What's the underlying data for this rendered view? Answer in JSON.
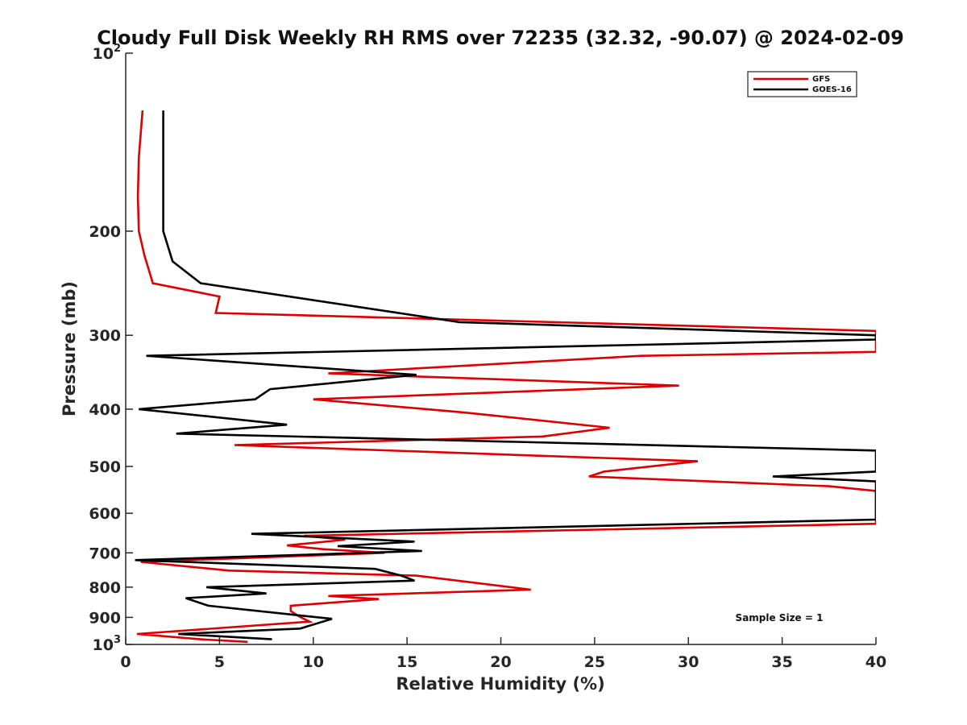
{
  "chart_data": {
    "type": "line",
    "title": "Cloudy Full Disk Weekly RH RMS over 72235 (32.32, -90.07) @ 2024-02-09",
    "xlabel": "Relative Humidity (%)",
    "ylabel": "Pressure (mb)",
    "xlim": [
      0,
      40
    ],
    "ylim": [
      100,
      1000
    ],
    "yscale": "log",
    "y_reversed": true,
    "grid": false,
    "legend_position": "top-right",
    "x_ticks": [
      0,
      5,
      10,
      15,
      20,
      25,
      30,
      35,
      40
    ],
    "x_tick_labels": [
      "0",
      "5",
      "10",
      "15",
      "20",
      "25",
      "30",
      "35",
      "40"
    ],
    "y_ticks": [
      100,
      200,
      300,
      400,
      500,
      600,
      700,
      800,
      900,
      1000
    ],
    "y_tick_labels": [
      {
        "base": "10",
        "exp": "2"
      },
      {
        "text": "200"
      },
      {
        "text": "300"
      },
      {
        "text": "400"
      },
      {
        "text": "500"
      },
      {
        "text": "600"
      },
      {
        "text": "700"
      },
      {
        "text": "800"
      },
      {
        "text": "900"
      },
      {
        "base": "10",
        "exp": "3"
      }
    ],
    "annotation": "Sample Size = 1",
    "series": [
      {
        "name": "GFS",
        "color": "#e00000",
        "points": [
          [
            0.9,
            125
          ],
          [
            0.7,
            150
          ],
          [
            0.65,
            175
          ],
          [
            0.7,
            200
          ],
          [
            1.0,
            220
          ],
          [
            1.45,
            245
          ],
          [
            5.0,
            258
          ],
          [
            4.8,
            275
          ],
          [
            40.0,
            295
          ],
          [
            40.0,
            320
          ],
          [
            27.5,
            325
          ],
          [
            10.8,
            348
          ],
          [
            29.5,
            365
          ],
          [
            10.0,
            385
          ],
          [
            18.0,
            405
          ],
          [
            25.8,
            430
          ],
          [
            22.2,
            445
          ],
          [
            5.8,
            460
          ],
          [
            30.5,
            490
          ],
          [
            25.5,
            510
          ],
          [
            24.7,
            520
          ],
          [
            37.5,
            540
          ],
          [
            40.0,
            550
          ],
          [
            40.0,
            625
          ],
          [
            9.5,
            655
          ],
          [
            11.7,
            665
          ],
          [
            8.6,
            680
          ],
          [
            10.5,
            690
          ],
          [
            13.8,
            700
          ],
          [
            0.8,
            725
          ],
          [
            5.5,
            750
          ],
          [
            15.5,
            765
          ],
          [
            21.6,
            808
          ],
          [
            10.8,
            828
          ],
          [
            13.5,
            838
          ],
          [
            8.8,
            860
          ],
          [
            8.8,
            878
          ],
          [
            9.2,
            895
          ],
          [
            9.8,
            915
          ],
          [
            0.6,
            960
          ],
          [
            4.0,
            980
          ],
          [
            6.5,
            990
          ]
        ]
      },
      {
        "name": "GOES-16",
        "color": "#000000",
        "points": [
          [
            2.0,
            125
          ],
          [
            2.0,
            150
          ],
          [
            2.0,
            175
          ],
          [
            2.0,
            200
          ],
          [
            2.5,
            225
          ],
          [
            4.0,
            245
          ],
          [
            17.8,
            285
          ],
          [
            40.0,
            300
          ],
          [
            40.0,
            305
          ],
          [
            1.1,
            325
          ],
          [
            15.5,
            350
          ],
          [
            7.7,
            370
          ],
          [
            6.9,
            385
          ],
          [
            0.7,
            400
          ],
          [
            8.6,
            425
          ],
          [
            2.7,
            440
          ],
          [
            40.0,
            470
          ],
          [
            40.0,
            510
          ],
          [
            34.5,
            520
          ],
          [
            40.0,
            530
          ],
          [
            40.0,
            615
          ],
          [
            6.7,
            650
          ],
          [
            15.4,
            670
          ],
          [
            11.3,
            682
          ],
          [
            15.8,
            695
          ],
          [
            0.5,
            720
          ],
          [
            13.3,
            745
          ],
          [
            14.7,
            765
          ],
          [
            15.4,
            780
          ],
          [
            4.3,
            800
          ],
          [
            7.5,
            820
          ],
          [
            3.2,
            835
          ],
          [
            4.4,
            860
          ],
          [
            11.0,
            905
          ],
          [
            9.3,
            940
          ],
          [
            2.8,
            960
          ],
          [
            7.8,
            980
          ]
        ]
      }
    ]
  }
}
